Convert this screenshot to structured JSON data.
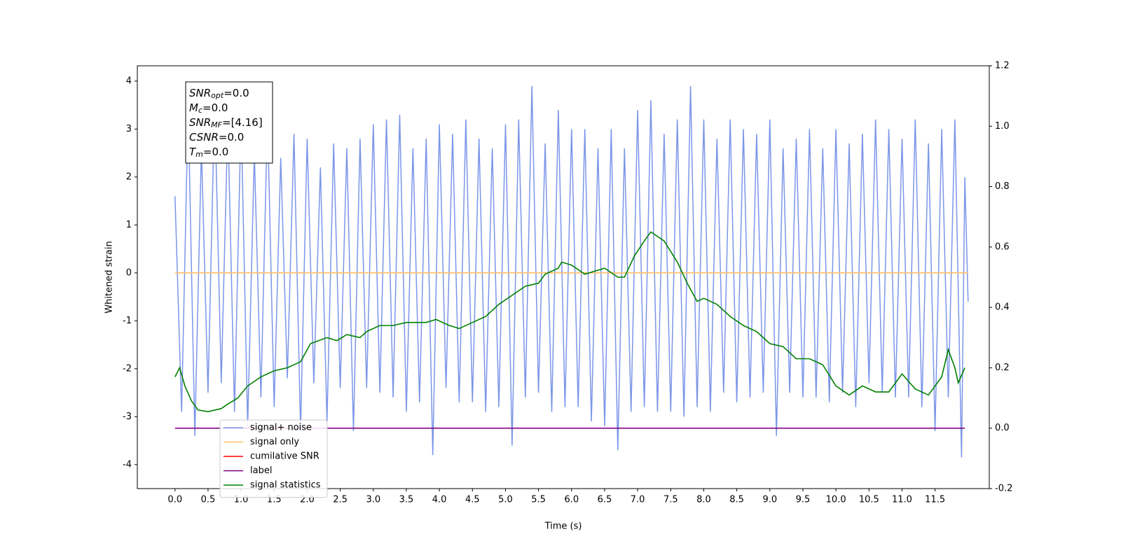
{
  "chart_data": {
    "type": "line",
    "xlabel": "Time (s)",
    "ylabel": "Whitened strain",
    "xlim": [
      -0.57,
      12.32
    ],
    "ylim": [
      -4.5,
      4.32
    ],
    "y2lim": [
      -0.2,
      1.2
    ],
    "xticks": [
      {
        "value": 0,
        "label": "0.0"
      },
      0.5,
      {
        "value": 1,
        "label": "1.0"
      },
      1.5,
      {
        "value": 2,
        "label": "2.0"
      },
      2.5,
      {
        "value": 3,
        "label": "3.0"
      },
      3.5,
      {
        "value": 4,
        "label": "4.0"
      },
      4.5,
      {
        "value": 5,
        "label": "5.0"
      },
      5.5,
      {
        "value": 6,
        "label": "6.0"
      },
      6.5,
      {
        "value": 7,
        "label": "7.0"
      },
      7.5,
      {
        "value": 8,
        "label": "8.0"
      },
      8.5,
      {
        "value": 9,
        "label": "9.0"
      },
      9.5,
      {
        "value": 10,
        "label": "10.0"
      },
      10.5,
      {
        "value": 11,
        "label": "11.0"
      },
      11.5
    ],
    "yticks": [
      -4,
      -3,
      -2,
      -1,
      0,
      1,
      2,
      3,
      4
    ],
    "y2ticks": [
      -0.2,
      {
        "value": 0,
        "label": "0.0"
      },
      0.2,
      0.4,
      0.6,
      0.8,
      {
        "value": 1,
        "label": "1.0"
      },
      1.2
    ],
    "annotation": [
      {
        "base": "SNR",
        "sub": "opt",
        "rest": "=0.0"
      },
      {
        "base": "M",
        "sub": "c",
        "rest": "=0.0"
      },
      {
        "base": "SNR",
        "sub": "MF",
        "rest": "=[4.16]"
      },
      {
        "base": "CSNR",
        "sub": null,
        "rest": "=0.0"
      },
      {
        "base": "T",
        "sub": "m",
        "rest": "=0.0"
      }
    ],
    "legend": "lower left",
    "series": [
      {
        "name": "signal+ noise",
        "color": "#7b96e8",
        "axis": "y",
        "x": [
          0,
          0.1,
          0.2,
          0.3,
          0.4,
          0.5,
          0.6,
          0.7,
          0.8,
          0.9,
          1,
          1.1,
          1.2,
          1.3,
          1.4,
          1.5,
          1.6,
          1.7,
          1.8,
          1.9,
          2,
          2.1,
          2.2,
          2.3,
          2.4,
          2.5,
          2.6,
          2.7,
          2.8,
          2.9,
          3,
          3.1,
          3.2,
          3.3,
          3.4,
          3.5,
          3.6,
          3.7,
          3.8,
          3.9,
          4,
          4.1,
          4.2,
          4.3,
          4.4,
          4.5,
          4.6,
          4.7,
          4.8,
          4.9,
          5,
          5.1,
          5.2,
          5.3,
          5.4,
          5.5,
          5.6,
          5.7,
          5.8,
          5.9,
          6,
          6.1,
          6.2,
          6.3,
          6.4,
          6.5,
          6.6,
          6.7,
          6.8,
          6.9,
          7,
          7.1,
          7.2,
          7.3,
          7.4,
          7.5,
          7.6,
          7.7,
          7.8,
          7.9,
          8,
          8.1,
          8.2,
          8.3,
          8.4,
          8.5,
          8.6,
          8.7,
          8.8,
          8.9,
          9,
          9.1,
          9.2,
          9.3,
          9.4,
          9.5,
          9.6,
          9.7,
          9.8,
          9.9,
          10,
          10.1,
          10.2,
          10.3,
          10.4,
          10.5,
          10.6,
          10.7,
          10.8,
          10.9,
          11,
          11.1,
          11.2,
          11.3,
          11.4,
          11.5,
          11.6,
          11.7,
          11.8,
          11.9,
          11.95,
          12
        ],
        "values": [
          1.6,
          -2.9,
          3.5,
          -3.4,
          2.6,
          -2.5,
          3.6,
          -2.3,
          3.2,
          -2.9,
          3.3,
          -3.2,
          2.5,
          -2.6,
          3.3,
          -2.8,
          2.4,
          -2.2,
          2.9,
          -3.3,
          2.8,
          -2.3,
          2.2,
          -3.1,
          2.7,
          -2.4,
          2.6,
          -3.3,
          2.8,
          -2.4,
          3.1,
          -2.5,
          3.2,
          -2.6,
          3.3,
          -2.9,
          2.6,
          -2.7,
          2.8,
          -3.8,
          3.1,
          -2.4,
          2.9,
          -2.7,
          3.2,
          -2.7,
          2.8,
          -2.9,
          2.6,
          -2.8,
          3.1,
          -3.6,
          3.2,
          -2.6,
          3.9,
          -2.5,
          2.7,
          -2.9,
          3.4,
          -2.8,
          3.0,
          -2.8,
          3.0,
          -3.1,
          2.6,
          -3.2,
          3.0,
          -3.7,
          2.6,
          -2.9,
          3.4,
          -2.8,
          3.6,
          -2.9,
          2.9,
          -2.9,
          3.2,
          -3.0,
          3.9,
          -2.8,
          3.2,
          -2.9,
          2.8,
          -2.5,
          3.2,
          -2.7,
          3.0,
          -2.6,
          2.9,
          -2.5,
          3.2,
          -3.4,
          2.6,
          -2.5,
          2.8,
          -2.6,
          3.0,
          -2.6,
          2.6,
          -2.7,
          3.0,
          -2.5,
          2.7,
          -2.8,
          2.9,
          -2.3,
          3.2,
          -2.5,
          3.0,
          -2.6,
          2.8,
          -2.6,
          3.2,
          -2.8,
          2.7,
          -3.3,
          3.0,
          -2.6,
          3.2,
          -3.85,
          2.0,
          -0.6
        ]
      },
      {
        "name": "signal only",
        "color": "#ffbf66",
        "axis": "y",
        "x": [
          0,
          12
        ],
        "values": [
          0,
          0
        ]
      },
      {
        "name": "cumilative SNR",
        "color": "#ff0000",
        "axis": "y2"
      },
      {
        "name": "label",
        "color": "#800080",
        "axis": "y2",
        "x": [
          0,
          11.95
        ],
        "values": [
          0,
          0
        ]
      },
      {
        "name": "signal statistics",
        "color": "#008000",
        "axis": "y2",
        "x": [
          0,
          0.07,
          0.15,
          0.25,
          0.35,
          0.5,
          0.7,
          0.8,
          0.95,
          1.1,
          1.3,
          1.5,
          1.7,
          1.9,
          2.05,
          2.3,
          2.45,
          2.6,
          2.8,
          2.9,
          3.1,
          3.3,
          3.5,
          3.8,
          3.95,
          4.15,
          4.3,
          4.5,
          4.7,
          4.9,
          5.1,
          5.3,
          5.5,
          5.6,
          5.8,
          5.85,
          6,
          6.2,
          6.5,
          6.7,
          6.8,
          6.95,
          7.1,
          7.2,
          7.4,
          7.6,
          7.75,
          7.9,
          8,
          8.2,
          8.4,
          8.6,
          8.8,
          9,
          9.2,
          9.4,
          9.6,
          9.8,
          10,
          10.2,
          10.4,
          10.6,
          10.8,
          11,
          11.2,
          11.4,
          11.6,
          11.7,
          11.8,
          11.85,
          11.95
        ],
        "values": [
          0.17,
          0.2,
          0.14,
          0.09,
          0.06,
          0.055,
          0.065,
          0.08,
          0.1,
          0.14,
          0.17,
          0.19,
          0.2,
          0.22,
          0.28,
          0.3,
          0.29,
          0.31,
          0.3,
          0.32,
          0.34,
          0.34,
          0.35,
          0.35,
          0.36,
          0.34,
          0.33,
          0.35,
          0.37,
          0.41,
          0.44,
          0.47,
          0.48,
          0.51,
          0.53,
          0.55,
          0.54,
          0.51,
          0.53,
          0.5,
          0.5,
          0.57,
          0.62,
          0.65,
          0.62,
          0.55,
          0.48,
          0.42,
          0.43,
          0.41,
          0.37,
          0.34,
          0.32,
          0.28,
          0.27,
          0.23,
          0.23,
          0.21,
          0.14,
          0.11,
          0.14,
          0.12,
          0.12,
          0.18,
          0.13,
          0.11,
          0.17,
          0.26,
          0.2,
          0.15,
          0.2
        ]
      }
    ]
  }
}
